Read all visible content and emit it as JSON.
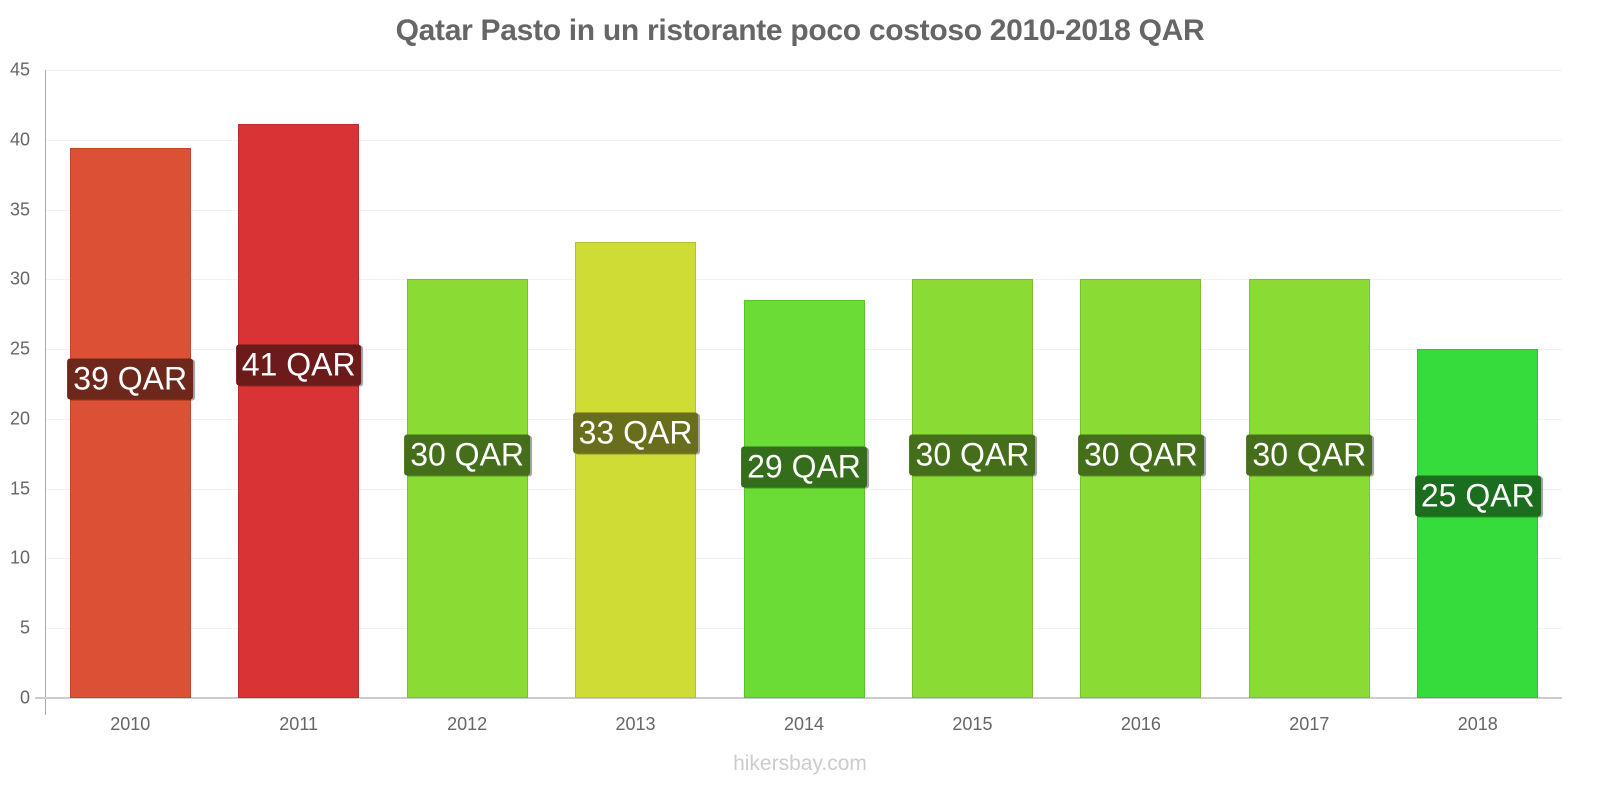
{
  "chart_data": {
    "type": "bar",
    "title": "Qatar Pasto in un ristorante poco costoso 2010-2018 QAR",
    "xlabel": "",
    "ylabel": "",
    "ylim": [
      0,
      45
    ],
    "yticks": [
      0,
      5,
      10,
      15,
      20,
      25,
      30,
      35,
      40,
      45
    ],
    "grid": true,
    "legend": null,
    "categories": [
      "2010",
      "2011",
      "2012",
      "2013",
      "2014",
      "2015",
      "2016",
      "2017",
      "2018"
    ],
    "values": [
      39.4,
      41.1,
      30,
      32.7,
      28.5,
      30,
      30,
      30,
      25
    ],
    "data_labels": [
      "39 QAR",
      "41 QAR",
      "30 QAR",
      "33 QAR",
      "29 QAR",
      "30 QAR",
      "30 QAR",
      "30 QAR",
      "25 QAR"
    ],
    "bar_colors": [
      "#dc5035",
      "#da3335",
      "#8adc35",
      "#cfdc35",
      "#6adc35",
      "#8adc35",
      "#8adc35",
      "#8adc35",
      "#35dc3c"
    ],
    "label_colors": [
      "#6e281b",
      "#6d1a1b",
      "#456e1b",
      "#686e1b",
      "#356e1b",
      "#456e1b",
      "#456e1b",
      "#456e1b",
      "#1b6e1e"
    ]
  },
  "watermark": "hikersbay.com"
}
